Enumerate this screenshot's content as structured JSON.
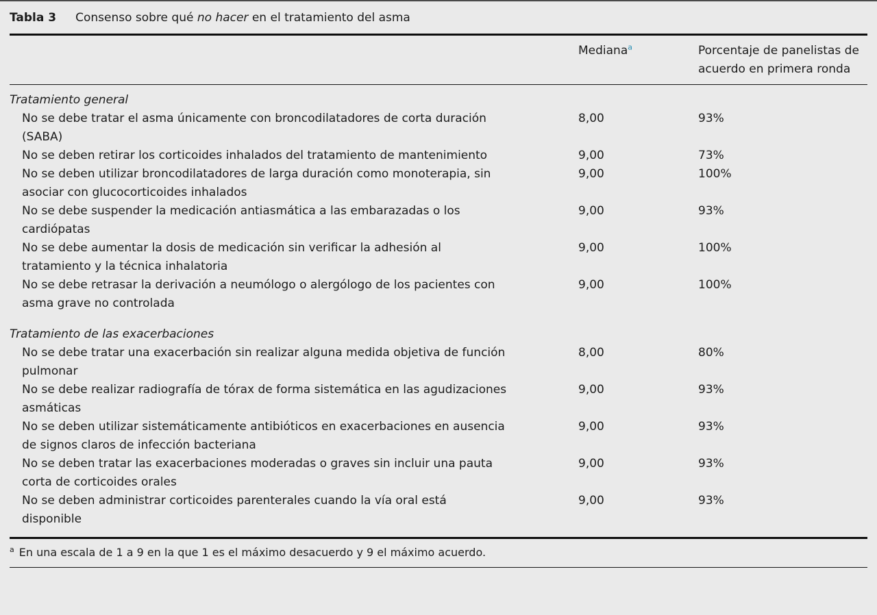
{
  "table": {
    "label": "Tabla 3",
    "caption": {
      "pre": "Consenso sobre qué ",
      "italic": "no hacer",
      "post": " en el tratamiento del asma"
    },
    "columns": {
      "mediana": "Mediana",
      "mediana_sup": "a",
      "pct": "Porcentaje de panelistas de acuerdo en primera ronda"
    },
    "sections": [
      {
        "title": "Tratamiento general",
        "rows": [
          {
            "text": "No se debe tratar el asma únicamente con broncodilatadores de corta duración (SABA)",
            "mediana": "8,00",
            "pct": "93%"
          },
          {
            "text": "No se deben retirar los corticoides inhalados del tratamiento de mantenimiento",
            "mediana": "9,00",
            "pct": "73%"
          },
          {
            "text": "No se deben utilizar broncodilatadores de larga duración como monoterapia, sin asociar con glucocorticoides inhalados",
            "mediana": "9,00",
            "pct": "100%"
          },
          {
            "text": "No se debe suspender la medicación antiasmática a las embarazadas o los cardiópatas",
            "mediana": "9,00",
            "pct": "93%"
          },
          {
            "text": "No se debe aumentar la dosis de medicación sin verificar la adhesión al tratamiento y la técnica inhalatoria",
            "mediana": "9,00",
            "pct": "100%"
          },
          {
            "text": "No se debe retrasar la derivación a neumólogo o alergólogo de los pacientes con asma grave no controlada",
            "mediana": "9,00",
            "pct": "100%"
          }
        ]
      },
      {
        "title": "Tratamiento de las exacerbaciones",
        "rows": [
          {
            "text": "No se debe tratar una exacerbación sin realizar alguna medida objetiva de función pulmonar",
            "mediana": "8,00",
            "pct": "80%"
          },
          {
            "text": "No se debe realizar radiografía de tórax de forma sistemática en las agudizaciones asmáticas",
            "mediana": "9,00",
            "pct": "93%"
          },
          {
            "text": "No se deben utilizar sistemáticamente antibióticos en exacerbaciones en ausencia de signos claros de infección bacteriana",
            "mediana": "9,00",
            "pct": "93%"
          },
          {
            "text": "No se deben tratar las exacerbaciones moderadas o graves sin incluir una pauta corta de corticoides orales",
            "mediana": "9,00",
            "pct": "93%"
          },
          {
            "text": "No se deben administrar corticoides parenterales cuando la vía oral está disponible",
            "mediana": "9,00",
            "pct": "93%"
          }
        ]
      }
    ],
    "footnote": {
      "sup": "a",
      "text": "En una escala de 1 a 9 en la que 1 es el máximo desacuerdo y 9 el máximo acuerdo."
    }
  },
  "colors": {
    "background": "#eaeaea",
    "text": "#1b1b1b",
    "header_superscript": "#2c90b4",
    "rule": "#0d0d0d"
  }
}
